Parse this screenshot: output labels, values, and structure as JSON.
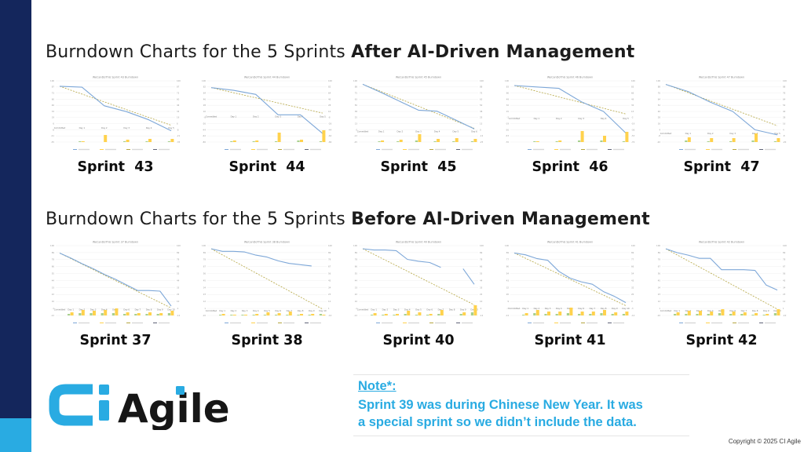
{
  "slide": {
    "title_after_regular": "Burndown Charts for the 5 Sprints ",
    "title_after_bold": "After AI-Driven Management",
    "title_before_regular": "Burndown Charts for the 5 Sprints ",
    "title_before_bold": "Before AI-Driven Management",
    "note": {
      "heading": "Note*: ",
      "line1": "Sprint 39 was during Chinese New Year. It was",
      "line2": "a special sprint so we didn’t include the data."
    },
    "logo": {
      "mark": "Ci",
      "text": "Agile"
    },
    "copyright": "Copyright © 2025 CI Agile",
    "colors": {
      "navy": "#14265c",
      "cyan": "#29abe2"
    }
  },
  "chart_style": {
    "line_color": "#7da7d8",
    "ideal_color": "#b5a642",
    "bar_yellow": "#ffd24d",
    "bar_green": "#a8d08d",
    "grid_color": "#ededed",
    "axis_text_color": "#9a9a9a",
    "legend_colors": [
      "#7da7d8",
      "#ffd24d",
      "#b5a642",
      "#606478"
    ]
  },
  "chart_data": [
    {
      "type": "line",
      "row": "after",
      "sprint_label": "Sprint  43",
      "title": "WeCanDoThis Sprint 43 Burndown",
      "x": [
        "Committed",
        "Day 1",
        "Day 2",
        "Day 3",
        "Day 4",
        "Day 5"
      ],
      "series": [
        {
          "name": "remaining",
          "values": [
            88,
            86,
            45,
            32,
            14,
            -10
          ]
        },
        {
          "name": "ideal",
          "values": [
            88,
            2
          ]
        }
      ],
      "bars_green": [
        1,
        0,
        1,
        1,
        1
      ],
      "bars_yellow": [
        1,
        9,
        3,
        4,
        4
      ],
      "ylim": [
        -35,
        100
      ]
    },
    {
      "type": "line",
      "row": "after",
      "sprint_label": "Sprint  44",
      "title": "WeCanDoThis Sprint 44 Burndown",
      "x": [
        "Committed",
        "Day 1",
        "Day 2",
        "Day 3",
        "Day 4",
        "Day 5"
      ],
      "series": [
        {
          "name": "remaining",
          "values": [
            80,
            72,
            60,
            0,
            0,
            -55
          ]
        },
        {
          "name": "ideal",
          "values": [
            80,
            5
          ]
        }
      ],
      "bars_green": [
        1,
        1,
        1,
        2,
        1
      ],
      "bars_yellow": [
        2,
        2,
        12,
        3,
        15
      ],
      "ylim": [
        -80,
        100
      ]
    },
    {
      "type": "line",
      "row": "after",
      "sprint_label": "Sprint  45",
      "title": "WeCanDoThis Sprint 45 Burndown",
      "x": [
        "Committed",
        "Day 1",
        "Day 2",
        "Day 3",
        "Day 4",
        "Day 5",
        "Day 6"
      ],
      "series": [
        {
          "name": "remaining",
          "values": [
            93,
            76,
            58,
            40,
            38,
            20,
            2
          ]
        },
        {
          "name": "ideal",
          "values": [
            93,
            3
          ]
        }
      ],
      "bars_green": [
        1,
        1,
        2,
        1,
        1,
        1
      ],
      "bars_yellow": [
        2,
        3,
        10,
        4,
        5,
        4
      ],
      "ylim": [
        -25,
        100
      ]
    },
    {
      "type": "line",
      "row": "after",
      "sprint_label": "Sprint  46",
      "title": "WeCanDoThis Sprint 46 Burndown",
      "x": [
        "Committed",
        "Day 1",
        "Day 2",
        "Day 3",
        "Day 4",
        "Day 5"
      ],
      "series": [
        {
          "name": "remaining",
          "values": [
            87,
            83,
            79,
            42,
            15,
            -45
          ]
        },
        {
          "name": "ideal",
          "values": [
            87,
            8
          ]
        }
      ],
      "bars_green": [
        1,
        1,
        2,
        2,
        1
      ],
      "bars_yellow": [
        1,
        2,
        14,
        8,
        13
      ],
      "ylim": [
        -70,
        100
      ]
    },
    {
      "type": "line",
      "row": "after",
      "sprint_label": "Sprint  47",
      "title": "WeCanDoThis Sprint 47 Burndown",
      "x": [
        "Committed",
        "Day 1",
        "Day 2",
        "Day 3",
        "Day 4",
        "Day 5"
      ],
      "series": [
        {
          "name": "remaining",
          "values": [
            93,
            79,
            58,
            40,
            4,
            -6
          ]
        },
        {
          "name": "ideal",
          "values": [
            93,
            12
          ]
        }
      ],
      "bars_green": [
        2,
        1,
        1,
        2,
        1
      ],
      "bars_yellow": [
        6,
        5,
        5,
        11,
        5
      ],
      "ylim": [
        -20,
        100
      ]
    },
    {
      "type": "line",
      "row": "before",
      "sprint_label": "Sprint 37",
      "title": "WeCanDoThis Sprint 37 Burndown",
      "x": [
        "Committed",
        "Day 1",
        "Day 2",
        "Day 3",
        "Day 4",
        "Day 5",
        "Day 6",
        "Day 7",
        "Day 8",
        "Day 9",
        "Day 10"
      ],
      "series": [
        {
          "name": "remaining",
          "values": [
            88,
            80,
            71,
            63,
            54,
            46,
            37,
            28,
            28,
            27,
            3
          ]
        },
        {
          "name": "ideal",
          "values": [
            88,
            0
          ]
        }
      ],
      "bars_green": [
        2,
        3,
        3,
        3,
        3,
        2,
        2,
        2,
        2,
        3
      ],
      "bars_yellow": [
        4,
        7,
        6,
        7,
        9,
        4,
        3,
        4,
        3,
        6
      ],
      "ylim": [
        -12,
        100
      ]
    },
    {
      "type": "line",
      "row": "before",
      "sprint_label": "Sprint 38",
      "title": "WeCanDoThis Sprint 38 Burndown",
      "x": [
        "Committed",
        "Day 1",
        "Day 2",
        "Day 3",
        "Day 4",
        "Day 5",
        "Day 6",
        "Day 7",
        "Day 8",
        "Day 9",
        "Day 10"
      ],
      "series": [
        {
          "name": "remaining",
          "values": [
            95,
            91,
            91,
            90,
            85,
            82,
            76,
            72,
            70,
            68,
            null
          ]
        },
        {
          "name": "ideal",
          "values": [
            95,
            0
          ]
        }
      ],
      "bars_green": [
        1,
        1,
        1,
        1,
        1,
        1,
        1,
        1,
        1,
        2
      ],
      "bars_yellow": [
        2,
        1,
        1,
        2,
        4,
        3,
        5,
        2,
        2,
        1
      ],
      "ylim": [
        -10,
        100
      ]
    },
    {
      "type": "line",
      "row": "before",
      "sprint_label": "Sprint 40",
      "title": "WeCanDoThis Sprint 40 Burndown",
      "x": [
        "Committed",
        "Day 1",
        "Day 2",
        "Day 3",
        "Day 4",
        "Day 5",
        "Day 6",
        "Day 7",
        "Day 8",
        "Day 9",
        "Day 10"
      ],
      "series": [
        {
          "name": "remaining",
          "values": [
            95,
            93,
            93,
            92,
            78,
            75,
            73,
            65,
            null,
            63,
            38
          ]
        },
        {
          "name": "ideal",
          "values": [
            95,
            5
          ]
        }
      ],
      "bars_green": [
        1,
        1,
        1,
        2,
        1,
        1,
        2,
        0,
        2,
        4
      ],
      "bars_yellow": [
        3,
        2,
        2,
        6,
        4,
        2,
        7,
        0,
        4,
        13
      ],
      "ylim": [
        -12,
        100
      ]
    },
    {
      "type": "line",
      "row": "before",
      "sprint_label": "Sprint 41",
      "title": "WeCanDoThis Sprint 41 Burndown",
      "x": [
        "Committed",
        "Day 1",
        "Day 2",
        "Day 3",
        "Day 4",
        "Day 5",
        "Day 6",
        "Day 7",
        "Day 8",
        "Day 9",
        "Day 10"
      ],
      "series": [
        {
          "name": "remaining",
          "values": [
            88,
            85,
            79,
            76,
            58,
            47,
            41,
            37,
            25,
            17,
            7
          ]
        },
        {
          "name": "ideal",
          "values": [
            88,
            2
          ]
        }
      ],
      "bars_green": [
        1,
        3,
        2,
        2,
        3,
        2,
        2,
        3,
        2,
        2
      ],
      "bars_yellow": [
        3,
        7,
        5,
        5,
        10,
        5,
        5,
        7,
        4,
        5
      ],
      "ylim": [
        -14,
        100
      ]
    },
    {
      "type": "line",
      "row": "before",
      "sprint_label": "Sprint 42",
      "title": "WeCanDoThis Sprint 42 Burndown",
      "x": [
        "Committed",
        "Day 1",
        "Day 2",
        "Day 3",
        "Day 4",
        "Day 5",
        "Day 6",
        "Day 7",
        "Day 8",
        "Day 9",
        "Day 10"
      ],
      "series": [
        {
          "name": "remaining",
          "values": [
            95,
            89,
            85,
            80,
            80,
            62,
            62,
            62,
            61,
            38,
            30
          ]
        },
        {
          "name": "ideal",
          "values": [
            95,
            0
          ]
        }
      ],
      "bars_green": [
        2,
        2,
        2,
        2,
        3,
        2,
        2,
        1,
        1,
        3
      ],
      "bars_yellow": [
        4,
        6,
        6,
        5,
        8,
        5,
        4,
        3,
        2,
        8
      ],
      "ylim": [
        -10,
        100
      ]
    }
  ]
}
